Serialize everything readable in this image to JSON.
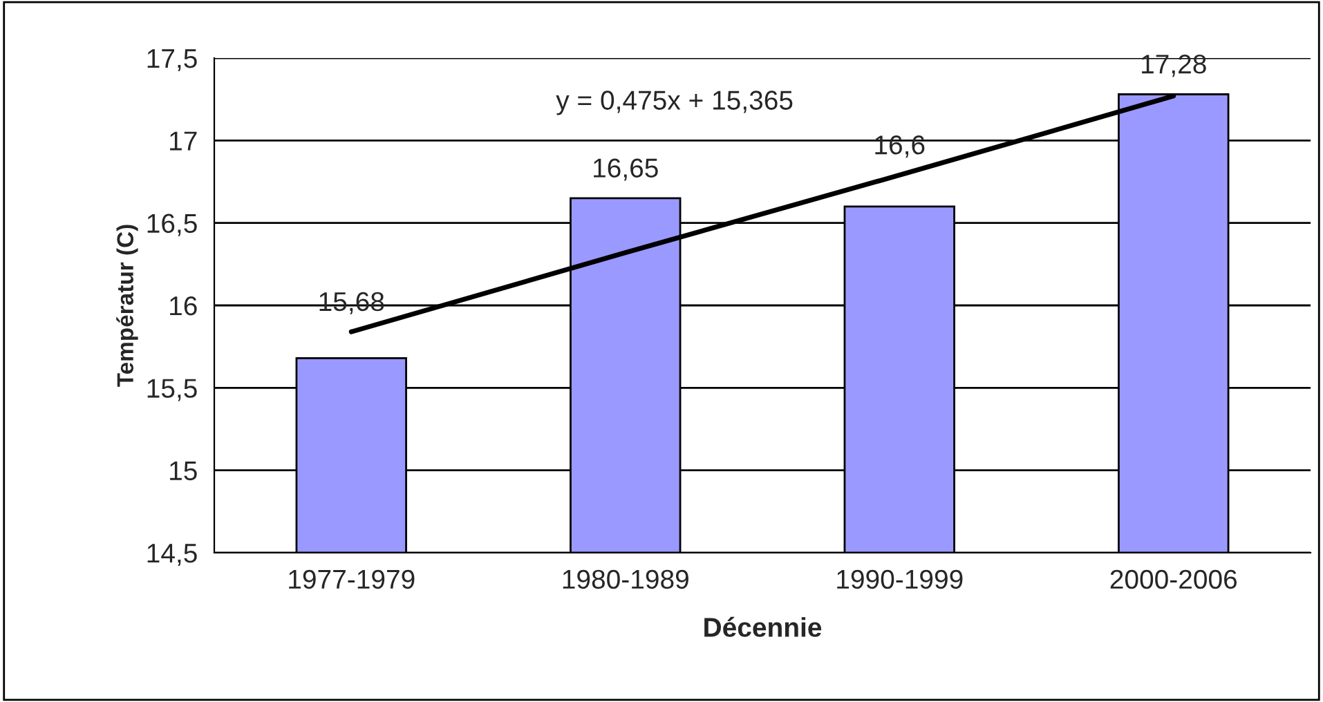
{
  "chart_data": {
    "type": "bar",
    "xlabel": "Décennie",
    "ylabel": "Températur (C)",
    "categories": [
      "1977-1979",
      "1980-1989",
      "1990-1999",
      "2000-2006"
    ],
    "series": [
      {
        "color": "#9999ff",
        "values": [
          15.68,
          16.65,
          16.6,
          17.28
        ],
        "value_labels": [
          "15,68",
          "16,65",
          "16,6",
          "17,28"
        ]
      },
      {
        "type": "line",
        "color": "#000000",
        "values": [
          15.84,
          16.32,
          16.79,
          17.27
        ]
      }
    ],
    "ylim": [
      14.5,
      17.5
    ],
    "yticks": [
      {
        "value": 14.5,
        "label": "14,5"
      },
      {
        "value": 15,
        "label": "15"
      },
      {
        "value": 15.5,
        "label": "15,5"
      },
      {
        "value": 16,
        "label": "16"
      },
      {
        "value": 16.5,
        "label": "16,5"
      },
      {
        "value": 17,
        "label": "17"
      },
      {
        "value": 17.5,
        "label": "17,5"
      }
    ],
    "annotations": [
      "y = 0,475x + 15,365"
    ],
    "grid": "y",
    "legend": false
  }
}
